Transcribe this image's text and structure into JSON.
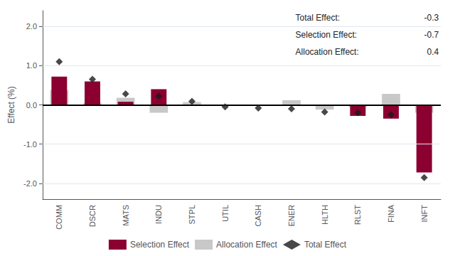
{
  "chart_data": {
    "type": "bar",
    "categories": [
      "COMM",
      "DSCR",
      "MATS",
      "INDU",
      "STPL",
      "UTIL",
      "CASH",
      "ENER",
      "HLTH",
      "RLST",
      "FINA",
      "INFT"
    ],
    "series": [
      {
        "name": "Selection Effect",
        "color": "#8B0030",
        "values": [
          0.72,
          0.6,
          0.08,
          0.4,
          0.0,
          0.0,
          0.0,
          0.0,
          0.0,
          -0.28,
          -0.35,
          -1.72
        ]
      },
      {
        "name": "Allocation Effect",
        "color": "#C8C8C8",
        "values": [
          0.38,
          0.05,
          0.18,
          -0.2,
          0.07,
          0.0,
          0.0,
          0.12,
          -0.12,
          -0.05,
          0.28,
          -0.2
        ]
      },
      {
        "name": "Total Effect",
        "type": "scatter",
        "marker": "diamond",
        "color": "#1a1a1a",
        "values": [
          1.1,
          0.65,
          0.28,
          0.22,
          0.09,
          -0.05,
          -0.08,
          -0.1,
          -0.18,
          -0.2,
          -0.25,
          -1.85
        ]
      }
    ],
    "ylabel": "Effect (%)",
    "ylim": [
      -2.4,
      2.4
    ],
    "yticks": [
      {
        "value": -2.0,
        "label": "-2.0"
      },
      {
        "value": -1.0,
        "label": "-1.0"
      },
      {
        "value": 0.0,
        "label": "0.0"
      },
      {
        "value": 1.0,
        "label": "1.0"
      },
      {
        "value": 2.0,
        "label": "2.0"
      }
    ],
    "annotations": [
      {
        "text": "Total Effect:",
        "value": -0.3
      },
      {
        "text": "Selection Effect:",
        "value": -0.7
      },
      {
        "text": "Allocation Effect:",
        "value": 0.4
      }
    ],
    "grid": true,
    "legend": "bottom"
  }
}
